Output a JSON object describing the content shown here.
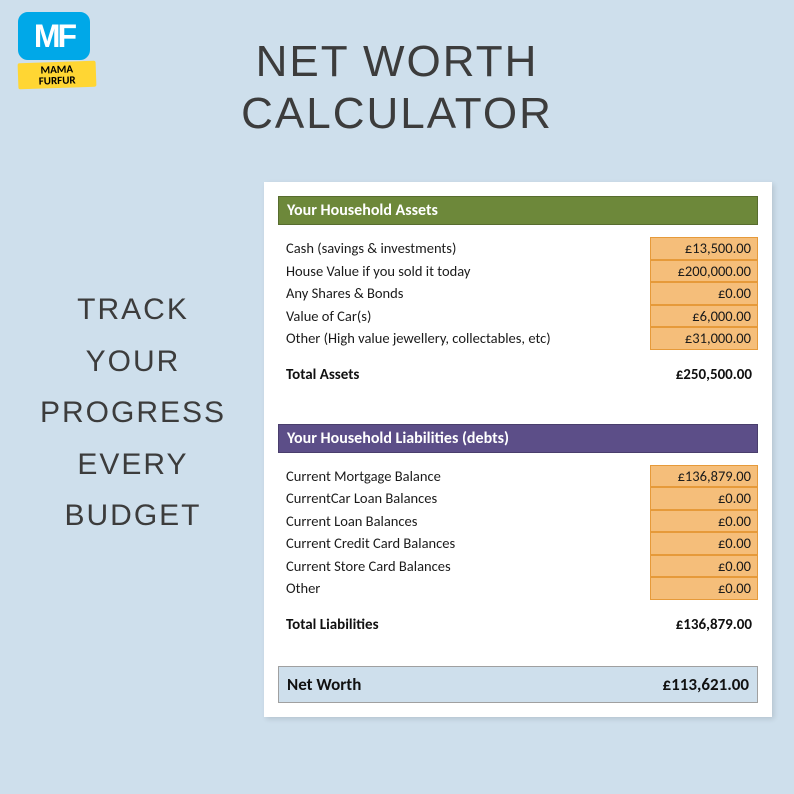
{
  "logo": {
    "monogram": "MF",
    "banner_line1": "MAMA",
    "banner_line2": "FURFUR",
    "tv_color": "#00a8e8",
    "banner_color": "#ffd633"
  },
  "title": {
    "line1": "NET WORTH",
    "line2": "CALCULATOR",
    "color": "#3c3c3c",
    "fontsize": 44
  },
  "tagline": {
    "lines": [
      "TRACK",
      "YOUR",
      "PROGRESS",
      "EVERY",
      "BUDGET"
    ],
    "color": "#3c3c3c",
    "fontsize": 30
  },
  "sheet": {
    "background": "#ffffff",
    "cell_fill": "#f5be7a",
    "cell_border": "#e69a3a",
    "assets": {
      "header": "Your Household Assets",
      "header_bg": "#6d883a",
      "items": [
        {
          "label": "Cash (savings & investments)",
          "value": "£13,500.00"
        },
        {
          "label": "House Value if you sold it today",
          "value": "£200,000.00"
        },
        {
          "label": "Any Shares & Bonds",
          "value": "£0.00"
        },
        {
          "label": "Value of Car(s)",
          "value": "£6,000.00"
        },
        {
          "label": "Other (High value jewellery, collectables, etc)",
          "value": "£31,000.00"
        }
      ],
      "total_label": "Total Assets",
      "total_value": "£250,500.00"
    },
    "liabilities": {
      "header": "Your Household Liabilities (debts)",
      "header_bg": "#5c4e88",
      "items": [
        {
          "label": "Current Mortgage Balance",
          "value": "£136,879.00"
        },
        {
          "label": "CurrentCar Loan Balances",
          "value": "£0.00"
        },
        {
          "label": "Current Loan Balances",
          "value": "£0.00"
        },
        {
          "label": "Current Credit Card Balances",
          "value": "£0.00"
        },
        {
          "label": "Current Store Card Balances",
          "value": "£0.00"
        },
        {
          "label": "Other",
          "value": "£0.00"
        }
      ],
      "total_label": "Total Liabilities",
      "total_value": "£136,879.00"
    },
    "net_worth": {
      "label": "Net Worth",
      "value": "£113,621.00",
      "bg": "#cedfec"
    }
  }
}
